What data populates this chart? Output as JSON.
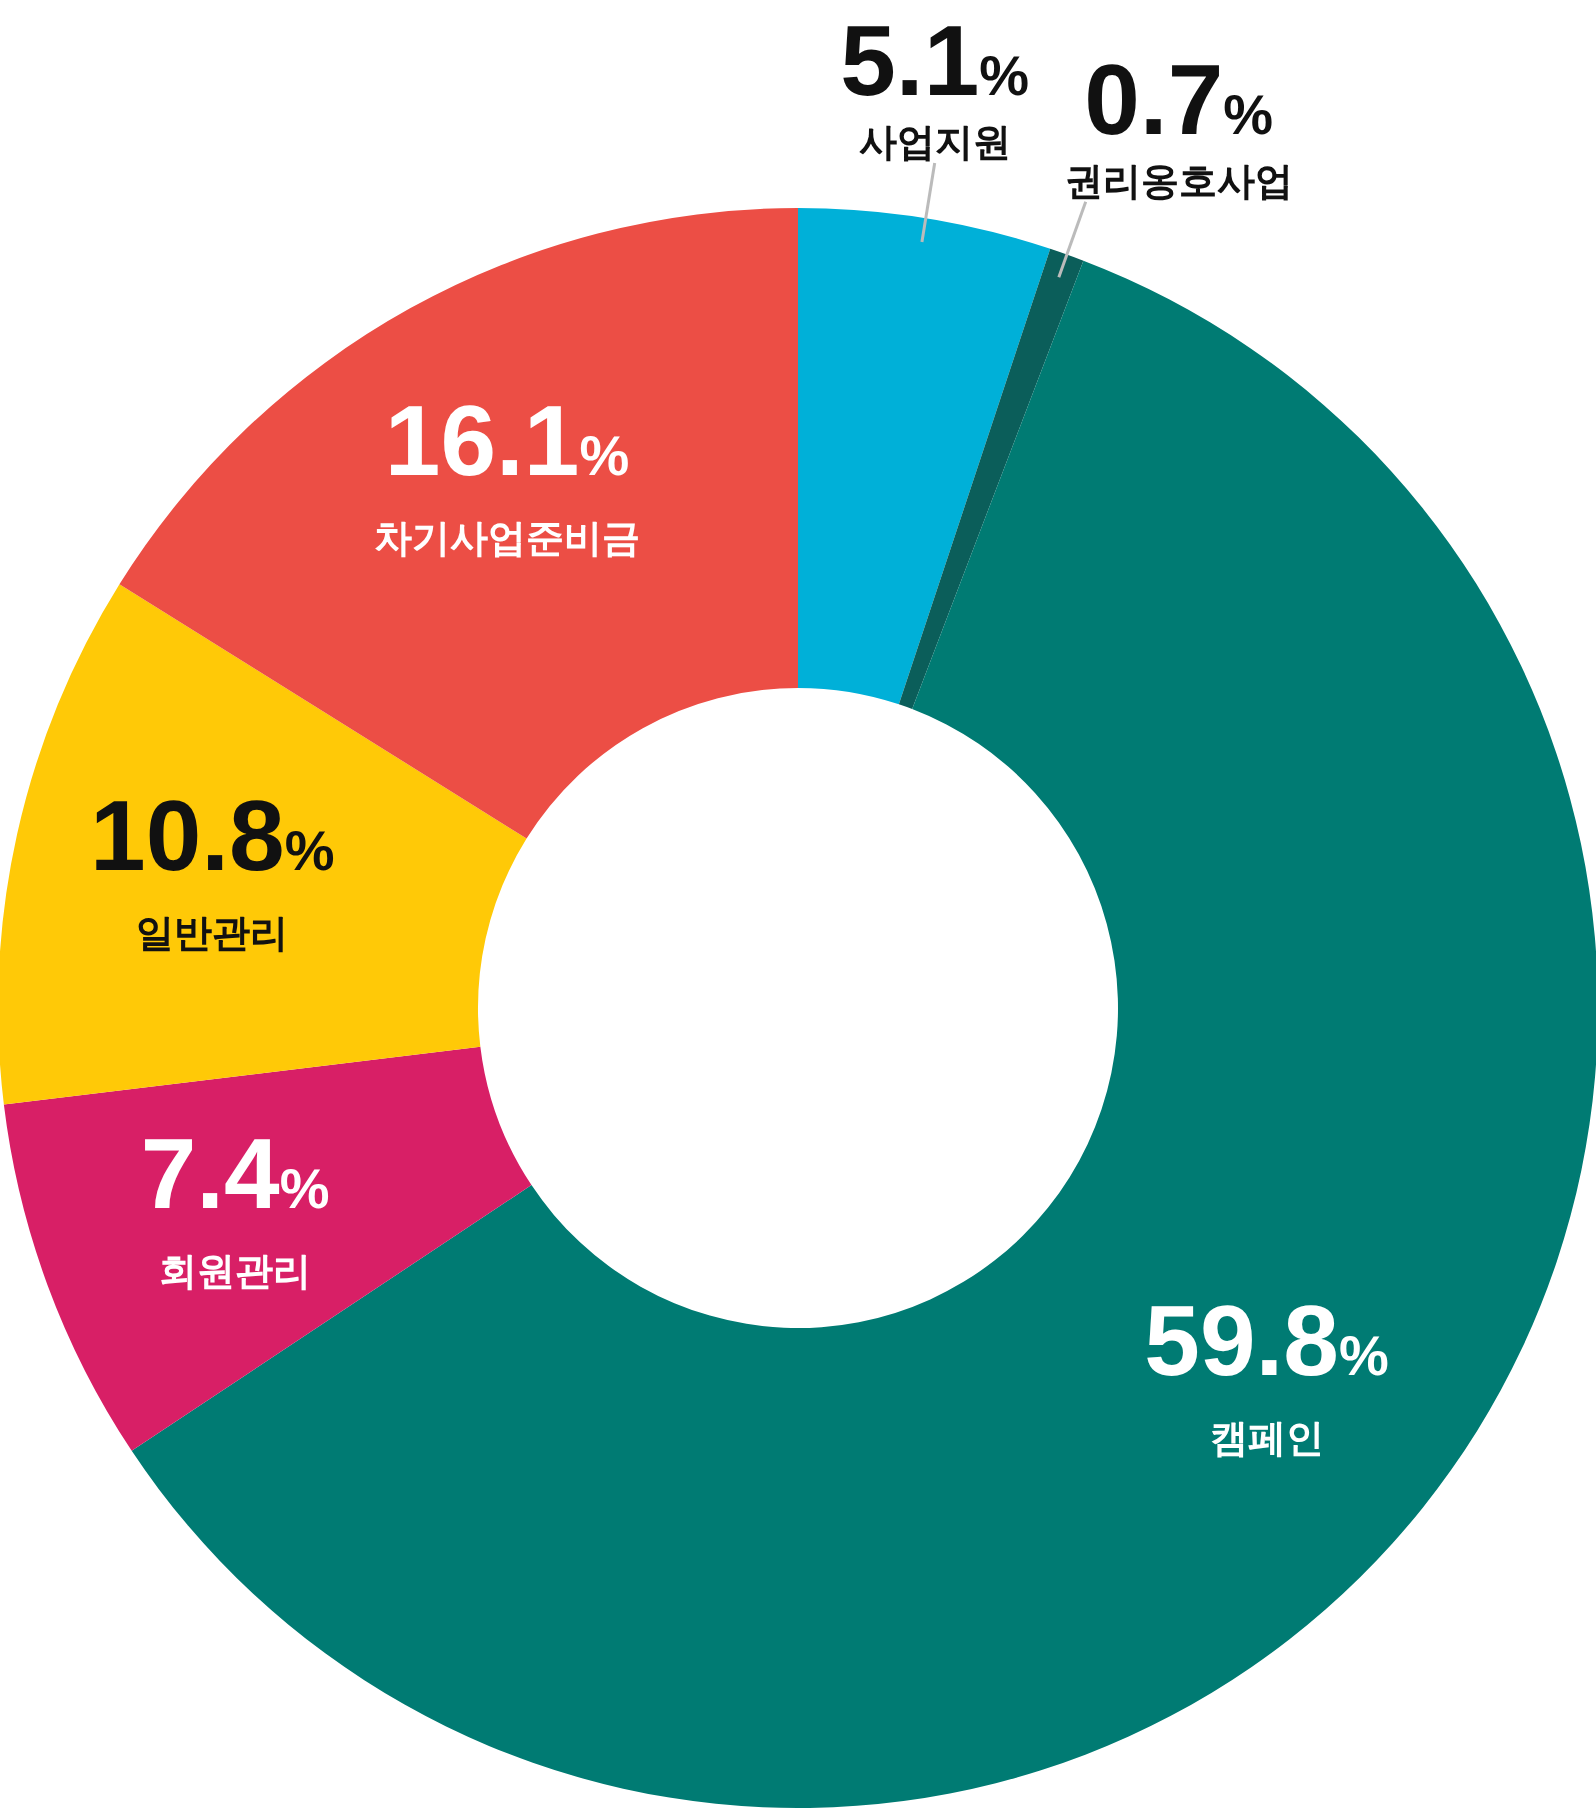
{
  "chart_data": {
    "type": "donut",
    "categories": [
      "사업지원",
      "권리옹호사업",
      "캠페인",
      "회원관리",
      "일반관리",
      "차기사업준비금"
    ],
    "values": [
      5.1,
      0.7,
      59.8,
      7.4,
      10.8,
      16.1
    ],
    "colors": [
      "#00b0d8",
      "#0b5e5a",
      "#007b73",
      "#d81f66",
      "#ffc907",
      "#ec4e45"
    ],
    "value_labels": [
      "5.1%",
      "0.7%",
      "59.8%",
      "7.4%",
      "10.8%",
      "16.1%"
    ]
  }
}
